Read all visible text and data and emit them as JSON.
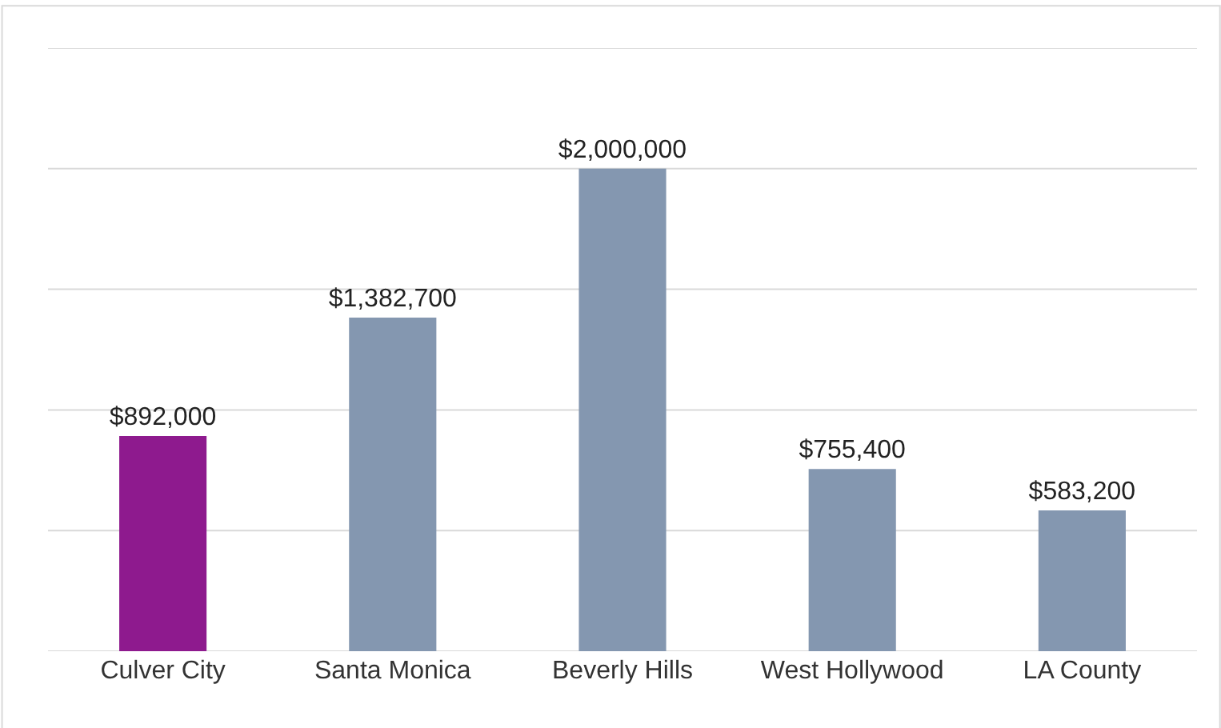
{
  "chart_data": {
    "type": "bar",
    "categories": [
      "Culver City",
      "Santa Monica",
      "Beverly Hills",
      "West Hollywood",
      "LA County"
    ],
    "values": [
      892000,
      1382700,
      2000000,
      755400,
      583200
    ],
    "colors": [
      "#8e1a8e",
      "#8497b0",
      "#8497b0",
      "#8497b0",
      "#8497b0"
    ],
    "value_labels": [
      "$892,000",
      "$1,382,700",
      "$2,000,000",
      "$755,400",
      "$583,200"
    ],
    "ylim": [
      0,
      2500000
    ],
    "yticks": [
      {
        "value": 0,
        "label": null
      },
      {
        "value": 500000,
        "label": null
      },
      {
        "value": 1000000,
        "label": null
      },
      {
        "value": 1500000,
        "label": null
      },
      {
        "value": 2000000,
        "label": null
      },
      {
        "value": 2500000,
        "label": null
      }
    ],
    "tick_labels": "x",
    "grid": "y",
    "legend": false
  }
}
